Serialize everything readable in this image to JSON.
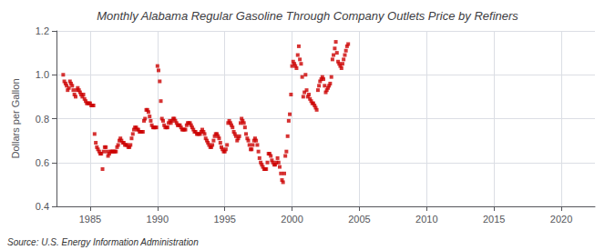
{
  "chart_data": {
    "type": "scatter",
    "title": "Monthly Alabama Regular Gasoline Through Company Outlets Price by Refiners",
    "ylabel": "Dollars per Gallon",
    "annotations": [
      "Source: U.S. Energy Information Administration"
    ],
    "color": "#cc0000",
    "marker": "square",
    "grid": true,
    "xlim": [
      1982.5,
      2022.5
    ],
    "ylim": [
      0.4,
      1.2
    ],
    "xticks": [
      1985,
      1990,
      1995,
      2000,
      2005,
      2010,
      2015,
      2020
    ],
    "yticks": [
      0.4,
      0.6,
      0.8,
      {
        "value": 1.0,
        "label": "1.0"
      },
      1.2
    ],
    "x": [
      1983.0,
      1983.08,
      1983.17,
      1983.25,
      1983.33,
      1983.42,
      1983.5,
      1983.58,
      1983.67,
      1983.75,
      1983.83,
      1983.92,
      1984.0,
      1984.08,
      1984.17,
      1984.25,
      1984.33,
      1984.42,
      1984.5,
      1984.58,
      1984.67,
      1984.75,
      1984.83,
      1984.92,
      1985.0,
      1985.08,
      1985.17,
      1985.25,
      1985.33,
      1985.42,
      1985.5,
      1985.58,
      1985.67,
      1985.75,
      1985.83,
      1985.92,
      1986.0,
      1986.08,
      1986.17,
      1986.25,
      1986.33,
      1986.42,
      1986.5,
      1986.58,
      1986.67,
      1986.75,
      1986.83,
      1986.92,
      1987.0,
      1987.08,
      1987.17,
      1987.25,
      1987.33,
      1987.42,
      1987.5,
      1987.58,
      1987.67,
      1987.75,
      1987.83,
      1987.92,
      1988.0,
      1988.08,
      1988.17,
      1988.25,
      1988.33,
      1988.42,
      1988.5,
      1988.58,
      1988.67,
      1988.75,
      1988.83,
      1988.92,
      1989.0,
      1989.08,
      1989.17,
      1989.25,
      1989.33,
      1989.42,
      1989.5,
      1989.58,
      1989.67,
      1989.75,
      1989.83,
      1989.92,
      1990.0,
      1990.08,
      1990.17,
      1990.25,
      1990.33,
      1990.42,
      1990.5,
      1990.58,
      1990.67,
      1990.75,
      1990.83,
      1990.92,
      1991.0,
      1991.08,
      1991.17,
      1991.25,
      1991.33,
      1991.42,
      1991.5,
      1991.58,
      1991.67,
      1991.75,
      1991.83,
      1991.92,
      1992.0,
      1992.08,
      1992.17,
      1992.25,
      1992.33,
      1992.42,
      1992.5,
      1992.58,
      1992.67,
      1992.75,
      1992.83,
      1992.92,
      1993.0,
      1993.08,
      1993.17,
      1993.25,
      1993.33,
      1993.42,
      1993.5,
      1993.58,
      1993.67,
      1993.75,
      1993.83,
      1993.92,
      1994.0,
      1994.08,
      1994.17,
      1994.25,
      1994.33,
      1994.42,
      1994.5,
      1994.58,
      1994.67,
      1994.75,
      1994.83,
      1994.92,
      1995.0,
      1995.08,
      1995.17,
      1995.25,
      1995.33,
      1995.42,
      1995.5,
      1995.58,
      1995.67,
      1995.75,
      1995.83,
      1995.92,
      1996.0,
      1996.08,
      1996.17,
      1996.25,
      1996.33,
      1996.42,
      1996.5,
      1996.58,
      1996.67,
      1996.75,
      1996.83,
      1996.92,
      1997.0,
      1997.08,
      1997.17,
      1997.25,
      1997.33,
      1997.42,
      1997.5,
      1997.58,
      1997.67,
      1997.75,
      1997.83,
      1997.92,
      1998.0,
      1998.08,
      1998.17,
      1998.25,
      1998.33,
      1998.42,
      1998.5,
      1998.58,
      1998.67,
      1998.75,
      1998.83,
      1998.92,
      1999.0,
      1999.08,
      1999.17,
      1999.25,
      1999.33,
      1999.42,
      1999.5,
      1999.58,
      1999.67,
      1999.75,
      1999.83,
      1999.92,
      2000.0,
      2000.08,
      2000.17,
      2000.25,
      2000.33,
      2000.42,
      2000.5,
      2000.58,
      2000.67,
      2000.75,
      2000.83,
      2000.92,
      2001.0,
      2001.08,
      2001.17,
      2001.25,
      2001.33,
      2001.42,
      2001.5,
      2001.58,
      2001.67,
      2001.75,
      2001.83,
      2001.92,
      2002.0,
      2002.08,
      2002.17,
      2002.25,
      2002.33,
      2002.42,
      2002.5,
      2002.58,
      2002.67,
      2002.75,
      2002.83,
      2002.92,
      2003.0,
      2003.08,
      2003.17,
      2003.25,
      2003.33,
      2003.42,
      2003.5,
      2003.58,
      2003.67,
      2003.75,
      2003.83,
      2003.92,
      2004.0,
      2004.08,
      2004.17
    ],
    "values": [
      1.0,
      0.97,
      0.96,
      0.95,
      0.93,
      0.94,
      0.97,
      0.96,
      0.95,
      0.93,
      0.91,
      0.9,
      0.93,
      0.94,
      0.93,
      0.92,
      0.91,
      0.9,
      0.91,
      0.89,
      0.88,
      0.87,
      0.87,
      0.87,
      0.87,
      0.86,
      0.86,
      0.86,
      0.73,
      0.69,
      0.67,
      0.66,
      0.65,
      0.64,
      0.64,
      0.57,
      0.65,
      0.67,
      0.67,
      0.65,
      0.63,
      0.64,
      0.65,
      0.65,
      0.65,
      0.65,
      0.65,
      0.65,
      0.67,
      0.68,
      0.7,
      0.71,
      0.7,
      0.69,
      0.69,
      0.68,
      0.68,
      0.68,
      0.67,
      0.67,
      0.68,
      0.71,
      0.73,
      0.75,
      0.76,
      0.76,
      0.75,
      0.75,
      0.74,
      0.74,
      0.74,
      0.74,
      0.79,
      0.8,
      0.84,
      0.84,
      0.83,
      0.81,
      0.79,
      0.77,
      0.76,
      0.76,
      0.76,
      0.76,
      1.04,
      1.02,
      0.97,
      0.88,
      0.8,
      0.79,
      0.77,
      0.76,
      0.76,
      0.76,
      0.78,
      0.79,
      0.78,
      0.79,
      0.8,
      0.8,
      0.79,
      0.78,
      0.77,
      0.77,
      0.77,
      0.76,
      0.75,
      0.75,
      0.75,
      0.75,
      0.77,
      0.78,
      0.78,
      0.78,
      0.77,
      0.76,
      0.75,
      0.74,
      0.74,
      0.73,
      0.73,
      0.73,
      0.73,
      0.74,
      0.75,
      0.74,
      0.73,
      0.71,
      0.7,
      0.69,
      0.68,
      0.67,
      0.67,
      0.68,
      0.7,
      0.72,
      0.73,
      0.73,
      0.72,
      0.71,
      0.69,
      0.67,
      0.66,
      0.65,
      0.65,
      0.66,
      0.68,
      0.78,
      0.79,
      0.78,
      0.77,
      0.76,
      0.74,
      0.73,
      0.72,
      0.7,
      0.71,
      0.72,
      0.78,
      0.8,
      0.79,
      0.78,
      0.76,
      0.73,
      0.71,
      0.7,
      0.68,
      0.66,
      0.66,
      0.68,
      0.7,
      0.71,
      0.7,
      0.68,
      0.65,
      0.62,
      0.6,
      0.59,
      0.58,
      0.57,
      0.57,
      0.57,
      0.6,
      0.64,
      0.64,
      0.63,
      0.61,
      0.6,
      0.59,
      0.59,
      0.6,
      0.62,
      0.6,
      0.58,
      0.55,
      0.52,
      0.51,
      0.55,
      0.63,
      0.65,
      0.72,
      0.79,
      0.82,
      0.91,
      1.04,
      1.06,
      1.05,
      1.04,
      1.03,
      1.09,
      1.13,
      1.07,
      1.05,
      0.99,
      0.9,
      0.92,
      1.0,
      0.93,
      0.9,
      0.91,
      0.89,
      0.88,
      0.87,
      0.87,
      0.86,
      0.85,
      0.84,
      0.93,
      0.95,
      0.97,
      0.98,
      0.99,
      0.98,
      0.95,
      0.92,
      0.93,
      0.94,
      0.95,
      0.96,
      0.99,
      1.07,
      1.09,
      1.12,
      1.15,
      1.1,
      1.06,
      1.05,
      1.04,
      1.03,
      1.05,
      1.07,
      1.09,
      1.11,
      1.13,
      1.14
    ]
  }
}
